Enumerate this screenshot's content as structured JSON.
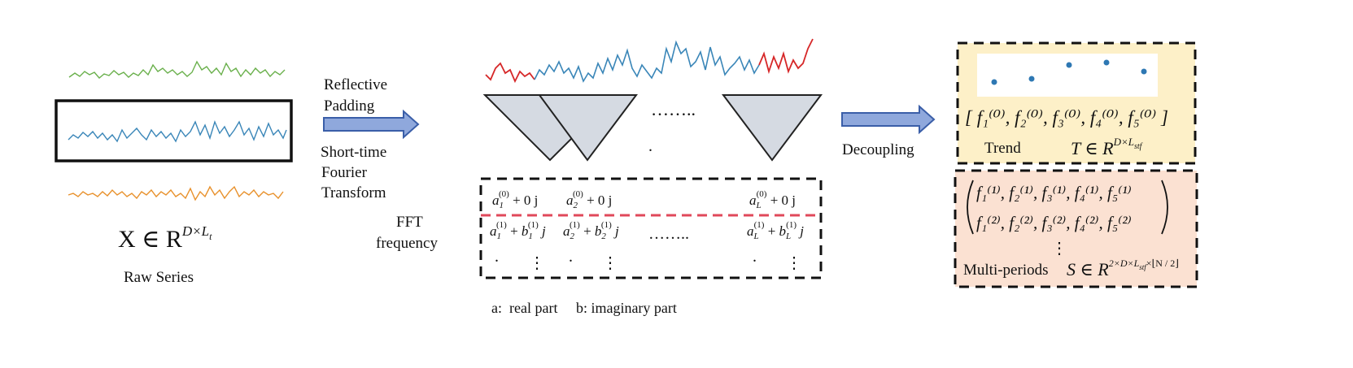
{
  "raw": {
    "formula_main": "X ∈ R",
    "formula_sup": "D×L",
    "formula_sub": "t",
    "caption": "Raw Series"
  },
  "arrow1": {
    "top_lines": [
      "Reflective",
      "Padding"
    ],
    "bottom_lines": [
      "Short-time",
      "Fourier",
      "Transform"
    ]
  },
  "fft": {
    "lines": [
      "FFT",
      "frequency"
    ]
  },
  "windows": {
    "dots": "……..",
    "dot": "."
  },
  "freq_box": {
    "row0": [
      {
        "a": "a",
        "sub": "1",
        "sup": "(0)",
        "tail": " + 0 j"
      },
      {
        "a": "a",
        "sub": "2",
        "sup": "(0)",
        "tail": " + 0 j"
      },
      {
        "a": "a",
        "sub": "L",
        "sup": "(0)",
        "tail": " + 0 j"
      }
    ],
    "row1": [
      {
        "a": "a",
        "sub": "1",
        "sup": "(1)",
        "mid": " + ",
        "b": "b",
        "bsub": "1",
        "bsup": "(1)",
        "tail": " j"
      },
      {
        "a": "a",
        "sub": "2",
        "sup": "(1)",
        "mid": " + ",
        "b": "b",
        "bsub": "2",
        "bsup": "(1)",
        "tail": " j"
      },
      {
        "a": "a",
        "sub": "L",
        "sup": "(1)",
        "mid": " + ",
        "b": "b",
        "bsub": "L",
        "bsup": "(1)",
        "tail": " j"
      }
    ],
    "dots": "……..",
    "vdots": "⋮",
    "dot": "."
  },
  "legend": "a:  real part     b: imaginary part",
  "decoupling": "Decoupling",
  "trend_box": {
    "vector": "[ f₁⁽⁰⁾, f₂⁽⁰⁾, f₃⁽⁰⁾, f₄⁽⁰⁾, f₅⁽⁰⁾ ]",
    "label": "Trend",
    "formula_main": "T ∈ R",
    "formula_sup": "D×L",
    "formula_sub": "stf"
  },
  "periods_box": {
    "row1": "f₁⁽¹⁾, f₂⁽¹⁾, f₃⁽¹⁾, f₄⁽¹⁾, f₅⁽¹⁾",
    "row2": "f₁⁽²⁾, f₂⁽²⁾, f₃⁽²⁾, f₄⁽²⁾, f₅⁽²⁾",
    "vdots": "⋮",
    "label": "Multi-periods",
    "formula_main": "S ∈ R",
    "formula_sup": "2×D×L",
    "formula_sup_sub": "stf",
    "formula_sup_tail": "×⌊N / 2⌋"
  },
  "colors": {
    "green": "#6ab04c",
    "blue": "#3a86b8",
    "orange": "#e8912c",
    "red": "#d62728",
    "arrow_fill": "#8fa8dc",
    "arrow_stroke": "#3a5ea8",
    "triangle_fill": "#d5dae2",
    "trend_bg": "#fdf0c8",
    "periods_bg": "#fbe1d2",
    "dashed_red": "#e0485a"
  }
}
